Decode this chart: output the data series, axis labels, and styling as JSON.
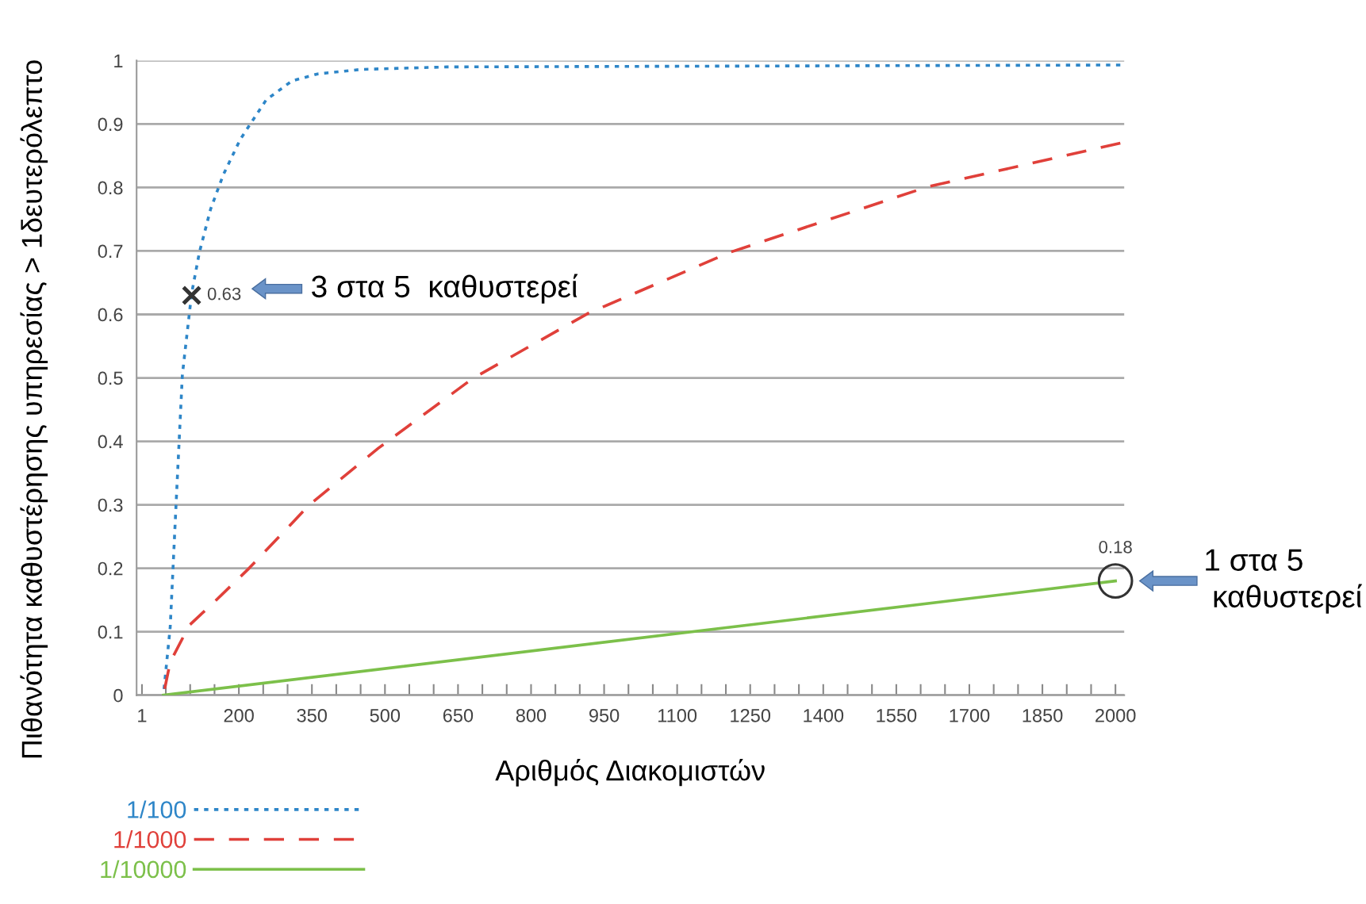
{
  "chart_data": {
    "type": "line",
    "xlabel": "Αριθμός Διακομιστών",
    "ylabel": "Πιθανότητα καθυστέρησης υπηρεσίας > 1δευτερόλεπτο",
    "xlim": [
      -10,
      2018
    ],
    "ylim": [
      0,
      1
    ],
    "xticks": [
      1,
      {
        "value": 50,
        "label": null
      },
      {
        "value": 100,
        "label": null
      },
      {
        "value": 150,
        "label": null
      },
      200,
      {
        "value": 250,
        "label": null
      },
      {
        "value": 300,
        "label": null
      },
      350,
      {
        "value": 400,
        "label": null
      },
      {
        "value": 450,
        "label": null
      },
      500,
      {
        "value": 550,
        "label": null
      },
      {
        "value": 600,
        "label": null
      },
      650,
      {
        "value": 700,
        "label": null
      },
      {
        "value": 750,
        "label": null
      },
      800,
      {
        "value": 850,
        "label": null
      },
      {
        "value": 900,
        "label": null
      },
      950,
      {
        "value": 1000,
        "label": null
      },
      {
        "value": 1050,
        "label": null
      },
      1100,
      {
        "value": 1150,
        "label": null
      },
      {
        "value": 1200,
        "label": null
      },
      1250,
      {
        "value": 1300,
        "label": null
      },
      {
        "value": 1350,
        "label": null
      },
      1400,
      {
        "value": 1450,
        "label": null
      },
      {
        "value": 1500,
        "label": null
      },
      1550,
      {
        "value": 1600,
        "label": null
      },
      {
        "value": 1650,
        "label": null
      },
      1700,
      {
        "value": 1750,
        "label": null
      },
      {
        "value": 1800,
        "label": null
      },
      1850,
      {
        "value": 1900,
        "label": null
      },
      {
        "value": 1950,
        "label": null
      },
      2000
    ],
    "yticks": [
      0,
      0.1,
      0.2,
      0.3,
      0.4,
      0.5,
      0.6,
      0.7,
      0.8,
      0.9,
      1
    ],
    "grid": "y",
    "legend": "bottom left",
    "series": [
      {
        "name": "1/100",
        "color": "#2e86c8",
        "line_style": "dotted",
        "x": [
          45,
          59,
          71,
          84,
          103,
          119,
          142,
          168,
          203,
          256,
          309,
          362,
          450,
          627,
          2010
        ],
        "values": [
          0,
          0.107,
          0.3,
          0.505,
          0.633,
          0.698,
          0.766,
          0.82,
          0.876,
          0.938,
          0.968,
          0.979,
          0.986,
          0.99,
          0.993
        ]
      },
      {
        "name": "1/1000",
        "color": "#e0403a",
        "line_style": "dashed",
        "x": [
          45,
          59,
          98,
          151,
          221,
          345,
          486,
          680,
          918,
          1209,
          1614,
          2010
        ],
        "values": [
          0,
          0.052,
          0.11,
          0.148,
          0.2,
          0.3,
          0.389,
          0.499,
          0.602,
          0.698,
          0.801,
          0.87
        ]
      },
      {
        "name": "1/10000",
        "color": "#7cc04a",
        "line_style": "solid",
        "x": [
          45,
          2000
        ],
        "values": [
          0,
          0.18
        ]
      },
      {
        "type": "scatter",
        "marker": "cross",
        "color": "#333333",
        "x": [
          103
        ],
        "values": [
          0.63
        ]
      },
      {
        "type": "scatter",
        "marker": "circle",
        "color": "#333333",
        "x": [
          2000
        ],
        "values": [
          0.18
        ]
      }
    ],
    "annotations": [
      {
        "text": "0.63",
        "x": 103,
        "y": 0.63
      },
      "3 στα 5  καθυστερεί",
      {
        "text": "0.18",
        "x": 2000,
        "y": 0.18
      },
      "1 στα 5\n καθυστερεί"
    ]
  }
}
